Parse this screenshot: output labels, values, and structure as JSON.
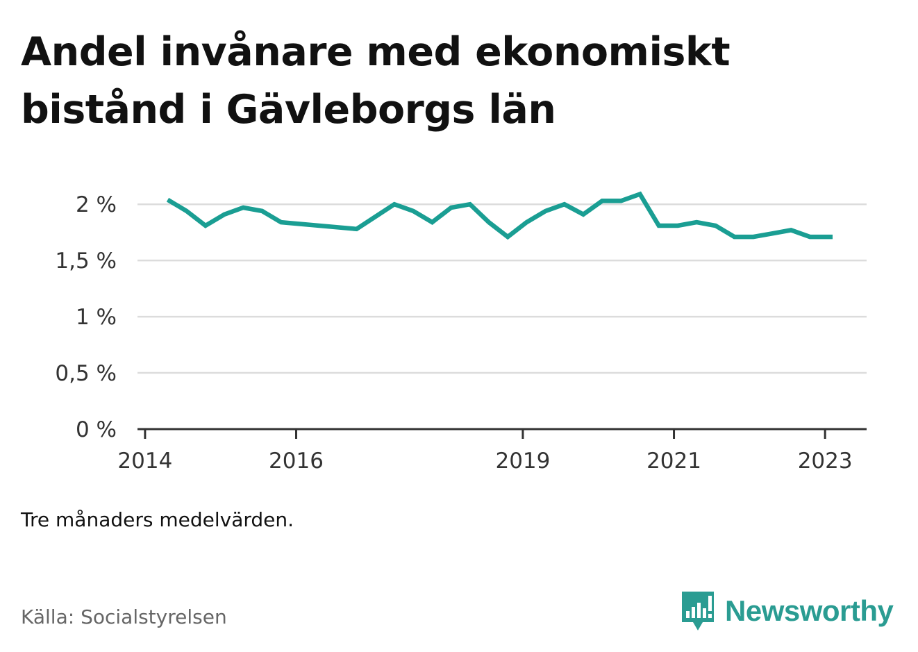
{
  "title_lines": [
    "Andel invånare med ekonomiskt",
    "bistånd i Gävleborgs län"
  ],
  "note": "Tre månaders medelvärden.",
  "source": "Källa: Socialstyrelsen",
  "brand": {
    "name": "Newsworthy",
    "icon": "newsworthy-logo-icon",
    "color": "#2a9c92"
  },
  "chart_data": {
    "type": "line",
    "title": "Andel invånare med ekonomiskt bistånd i Gävleborgs län",
    "xlabel": "",
    "ylabel": "",
    "ylim": [
      0,
      2.1
    ],
    "y_ticks": [
      0,
      0.5,
      1,
      1.5,
      2
    ],
    "y_tick_labels": [
      "0 %",
      "0,5 %",
      "1 %",
      "1,5 %",
      "2 %"
    ],
    "x_ticks": [
      2014,
      2016,
      2019,
      2021,
      2023
    ],
    "x_tick_labels": [
      "2014",
      "2016",
      "2019",
      "2021",
      "2023"
    ],
    "xlim": [
      2013.9,
      2023.55
    ],
    "grid": true,
    "line_color": "#1a9e93",
    "series": [
      {
        "x": [
          2014.3,
          2014.55,
          2014.8,
          2015.05,
          2015.3,
          2015.55,
          2015.8,
          2016.8,
          2017.05,
          2017.3,
          2017.55,
          2017.8,
          2018.05,
          2018.3,
          2018.55,
          2018.8,
          2019.05,
          2019.3,
          2019.55,
          2019.8,
          2020.05,
          2020.3,
          2020.55,
          2020.8,
          2021.05,
          2021.3,
          2021.55,
          2021.8,
          2022.05,
          2022.3,
          2022.55,
          2022.8,
          2023.1
        ],
        "values": [
          2.04,
          1.94,
          1.81,
          1.91,
          1.97,
          1.94,
          1.84,
          1.78,
          1.89,
          2.0,
          1.94,
          1.84,
          1.97,
          2.0,
          1.84,
          1.71,
          1.84,
          1.94,
          2.0,
          1.91,
          2.03,
          2.03,
          2.09,
          1.81,
          1.81,
          1.84,
          1.81,
          1.71,
          1.71,
          1.74,
          1.77,
          1.71,
          1.71
        ]
      }
    ]
  }
}
